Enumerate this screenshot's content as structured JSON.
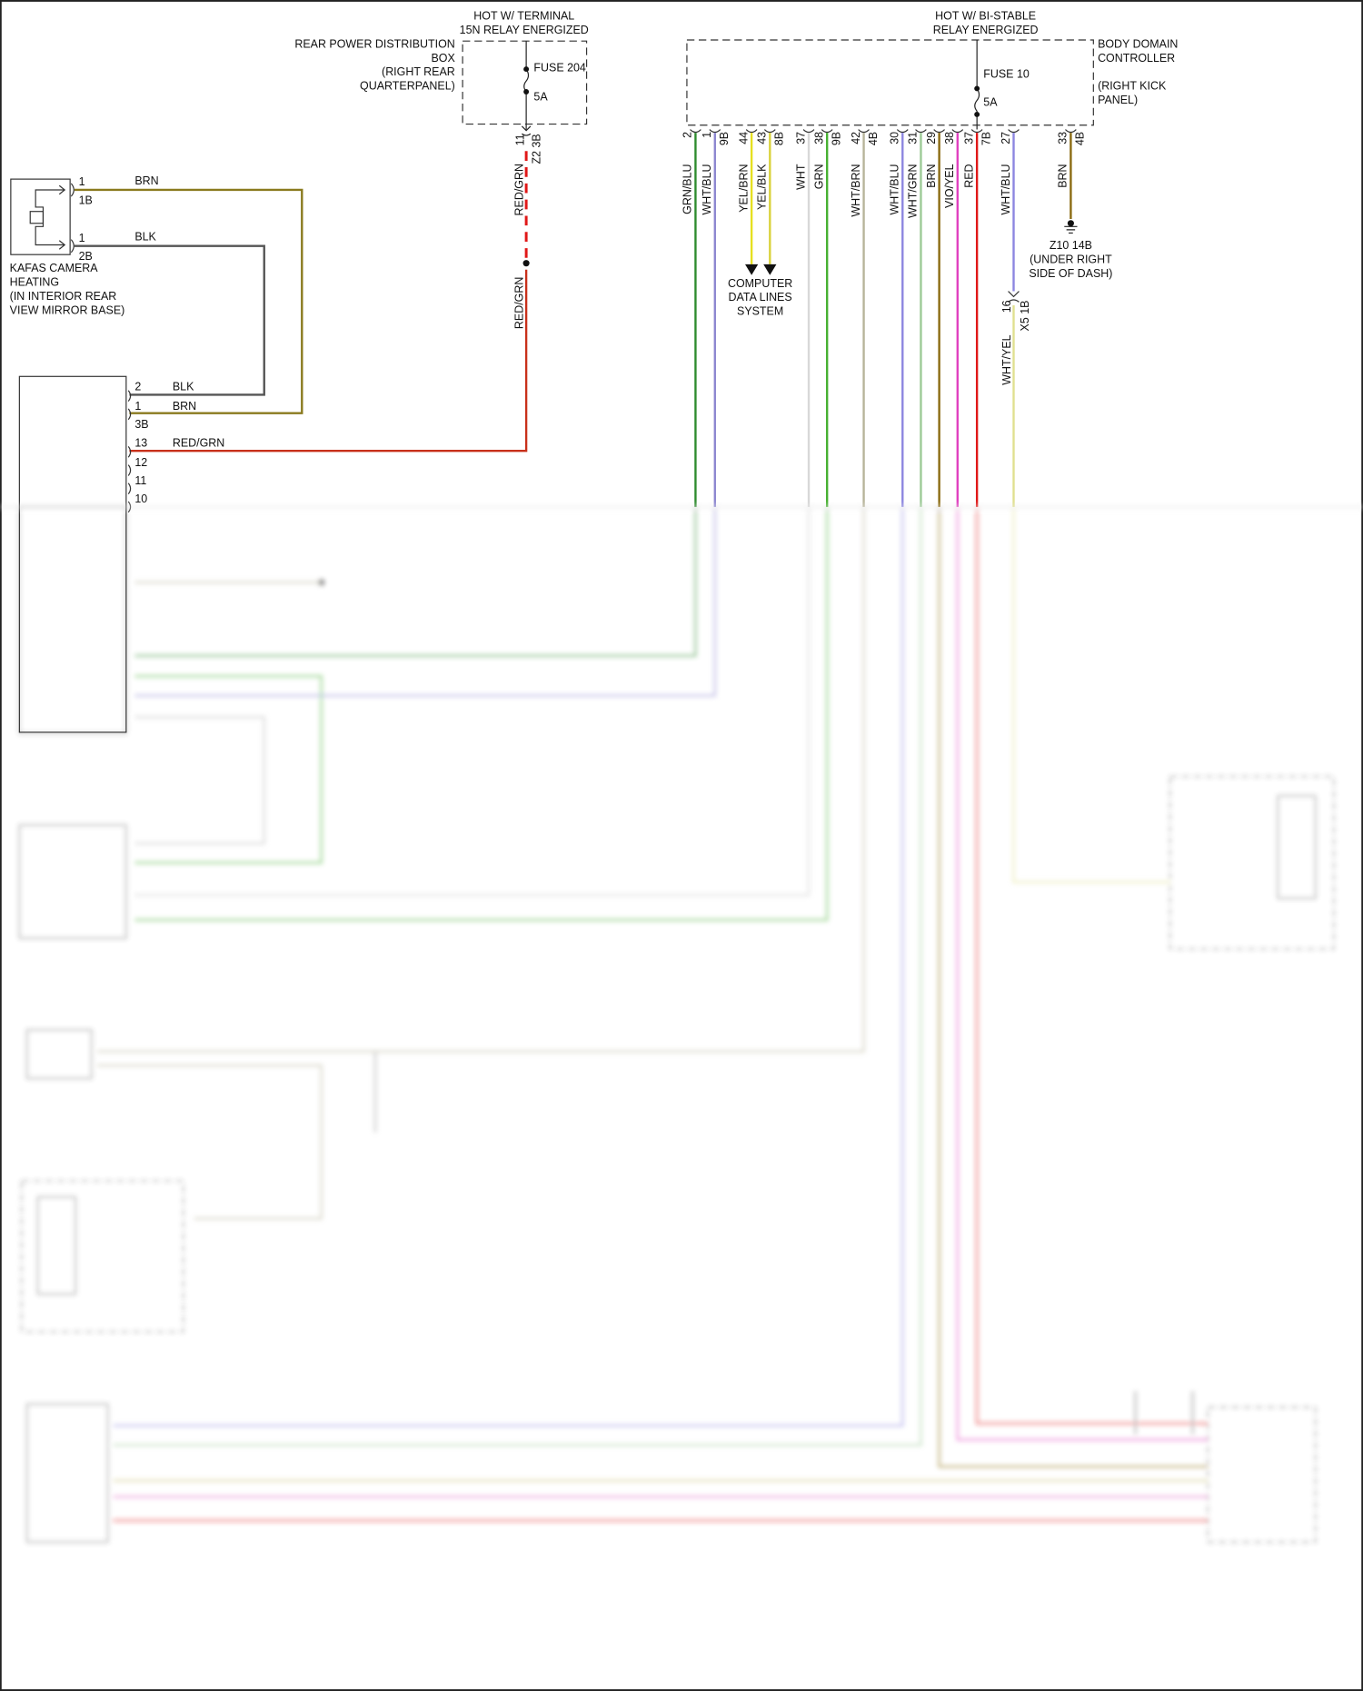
{
  "fuse_block_left": {
    "hot_label": [
      "HOT W/ TERMINAL",
      "15N RELAY ENERGIZED"
    ],
    "name": [
      "REAR POWER DISTRIBUTION",
      "BOX",
      "(RIGHT REAR",
      "QUARTERPANEL)"
    ],
    "fuse": "FUSE 204",
    "rating": "5A",
    "pin": "11",
    "connector": "Z2 3B",
    "wire_top": "RED/GRN",
    "wire_bottom": "RED/GRN"
  },
  "fuse_block_right": {
    "hot_label": [
      "HOT W/ BI-STABLE",
      "RELAY ENERGIZED"
    ],
    "name": [
      "BODY DOMAIN",
      "CONTROLLER",
      "",
      "(RIGHT KICK",
      "PANEL)"
    ],
    "fuse": "FUSE 10",
    "rating": "5A"
  },
  "camera_heating": {
    "name": [
      "KAFAS CAMERA",
      "HEATING",
      "(IN INTERIOR REAR",
      "VIEW MIRROR BASE)"
    ],
    "pins": [
      {
        "pin": "1",
        "connector": "1B",
        "wire": "BRN",
        "color": "#8a7a1e"
      },
      {
        "pin": "1",
        "connector": "2B",
        "wire": "BLK",
        "color": "#555555"
      }
    ]
  },
  "module_left": {
    "pins": [
      {
        "pin": "2",
        "wire": "BLK",
        "connector": ""
      },
      {
        "pin": "1",
        "wire": "BRN",
        "connector": "3B"
      },
      {
        "pin": "13",
        "wire": "RED/GRN",
        "connector": ""
      },
      {
        "pin": "12",
        "wire": "",
        "connector": ""
      },
      {
        "pin": "11",
        "wire": "",
        "connector": ""
      },
      {
        "pin": "10",
        "wire": "",
        "connector": ""
      }
    ]
  },
  "bdc_wires": [
    {
      "pin": "2",
      "connector": "",
      "wire": "GRN/BLU",
      "color": "#2e8b2e"
    },
    {
      "pin": "1",
      "connector": "9B",
      "wire": "WHT/BLU",
      "color": "#8c86d0"
    },
    {
      "pin": "44",
      "connector": "",
      "wire": "YEL/BRN",
      "color": "#e6e020"
    },
    {
      "pin": "43",
      "connector": "8B",
      "wire": "YEL/BLK",
      "color": "#d9d23a"
    },
    {
      "pin": "37",
      "connector": "",
      "wire": "WHT",
      "color": "#d8d8d8"
    },
    {
      "pin": "38",
      "connector": "9B",
      "wire": "GRN",
      "color": "#46b030"
    },
    {
      "pin": "42",
      "connector": "4B",
      "wire": "WHT/BRN",
      "color": "#b7b49a"
    },
    {
      "pin": "30",
      "connector": "",
      "wire": "WHT/BLU",
      "color": "#8c86e0"
    },
    {
      "pin": "31",
      "connector": "",
      "wire": "WHT/GRN",
      "color": "#9cca96"
    },
    {
      "pin": "29",
      "connector": "",
      "wire": "BRN",
      "color": "#8a6a10"
    },
    {
      "pin": "38",
      "connector": "",
      "wire": "VIO/YEL",
      "color": "#e040c0"
    },
    {
      "pin": "37",
      "connector": "7B",
      "wire": "RED",
      "color": "#e01818"
    },
    {
      "pin": "27",
      "connector": "",
      "wire": "WHT/BLU",
      "color": "#8c86e0"
    },
    {
      "pin": "33",
      "connector": "4B",
      "wire": "BRN",
      "color": "#8a6a10"
    }
  ],
  "data_lines": [
    "COMPUTER",
    "DATA LINES",
    "SYSTEM"
  ],
  "ground": [
    "Z10 14B",
    "(UNDER RIGHT",
    "SIDE OF DASH)"
  ],
  "inline_connector": {
    "pin": "16",
    "connector": "X5 1B",
    "wire": "WHT/YEL",
    "color": "#e0e090"
  }
}
